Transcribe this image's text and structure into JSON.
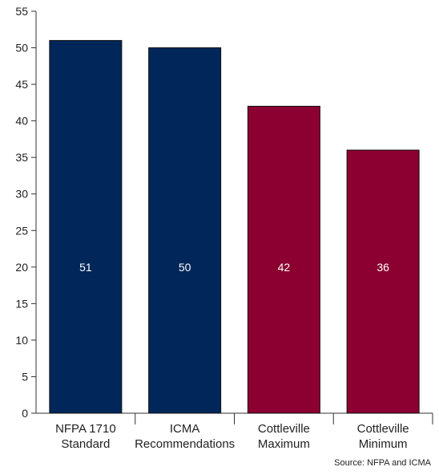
{
  "chart_data": {
    "type": "bar",
    "categories": [
      [
        "NFPA 1710",
        "Standard"
      ],
      [
        "ICMA",
        "Recommendations"
      ],
      [
        "Cottleville",
        "Maximum"
      ],
      [
        "Cottleville",
        "Minimum"
      ]
    ],
    "values": [
      51,
      50,
      42,
      36
    ],
    "bar_colors": [
      "#00265a",
      "#00265a",
      "#8b0030",
      "#8b0030"
    ],
    "data_labels": [
      "51",
      "50",
      "42",
      "36"
    ],
    "ylim": [
      0,
      55
    ],
    "yticks": [
      0,
      5,
      10,
      15,
      20,
      25,
      30,
      35,
      40,
      45,
      50,
      55
    ],
    "grid": false,
    "title": "",
    "xlabel": "",
    "ylabel": ""
  },
  "source_note": "Source: NFPA and ICMA",
  "colors": {
    "axis": "#333333",
    "label_on_bar": "#ffffff",
    "text": "#222222"
  }
}
